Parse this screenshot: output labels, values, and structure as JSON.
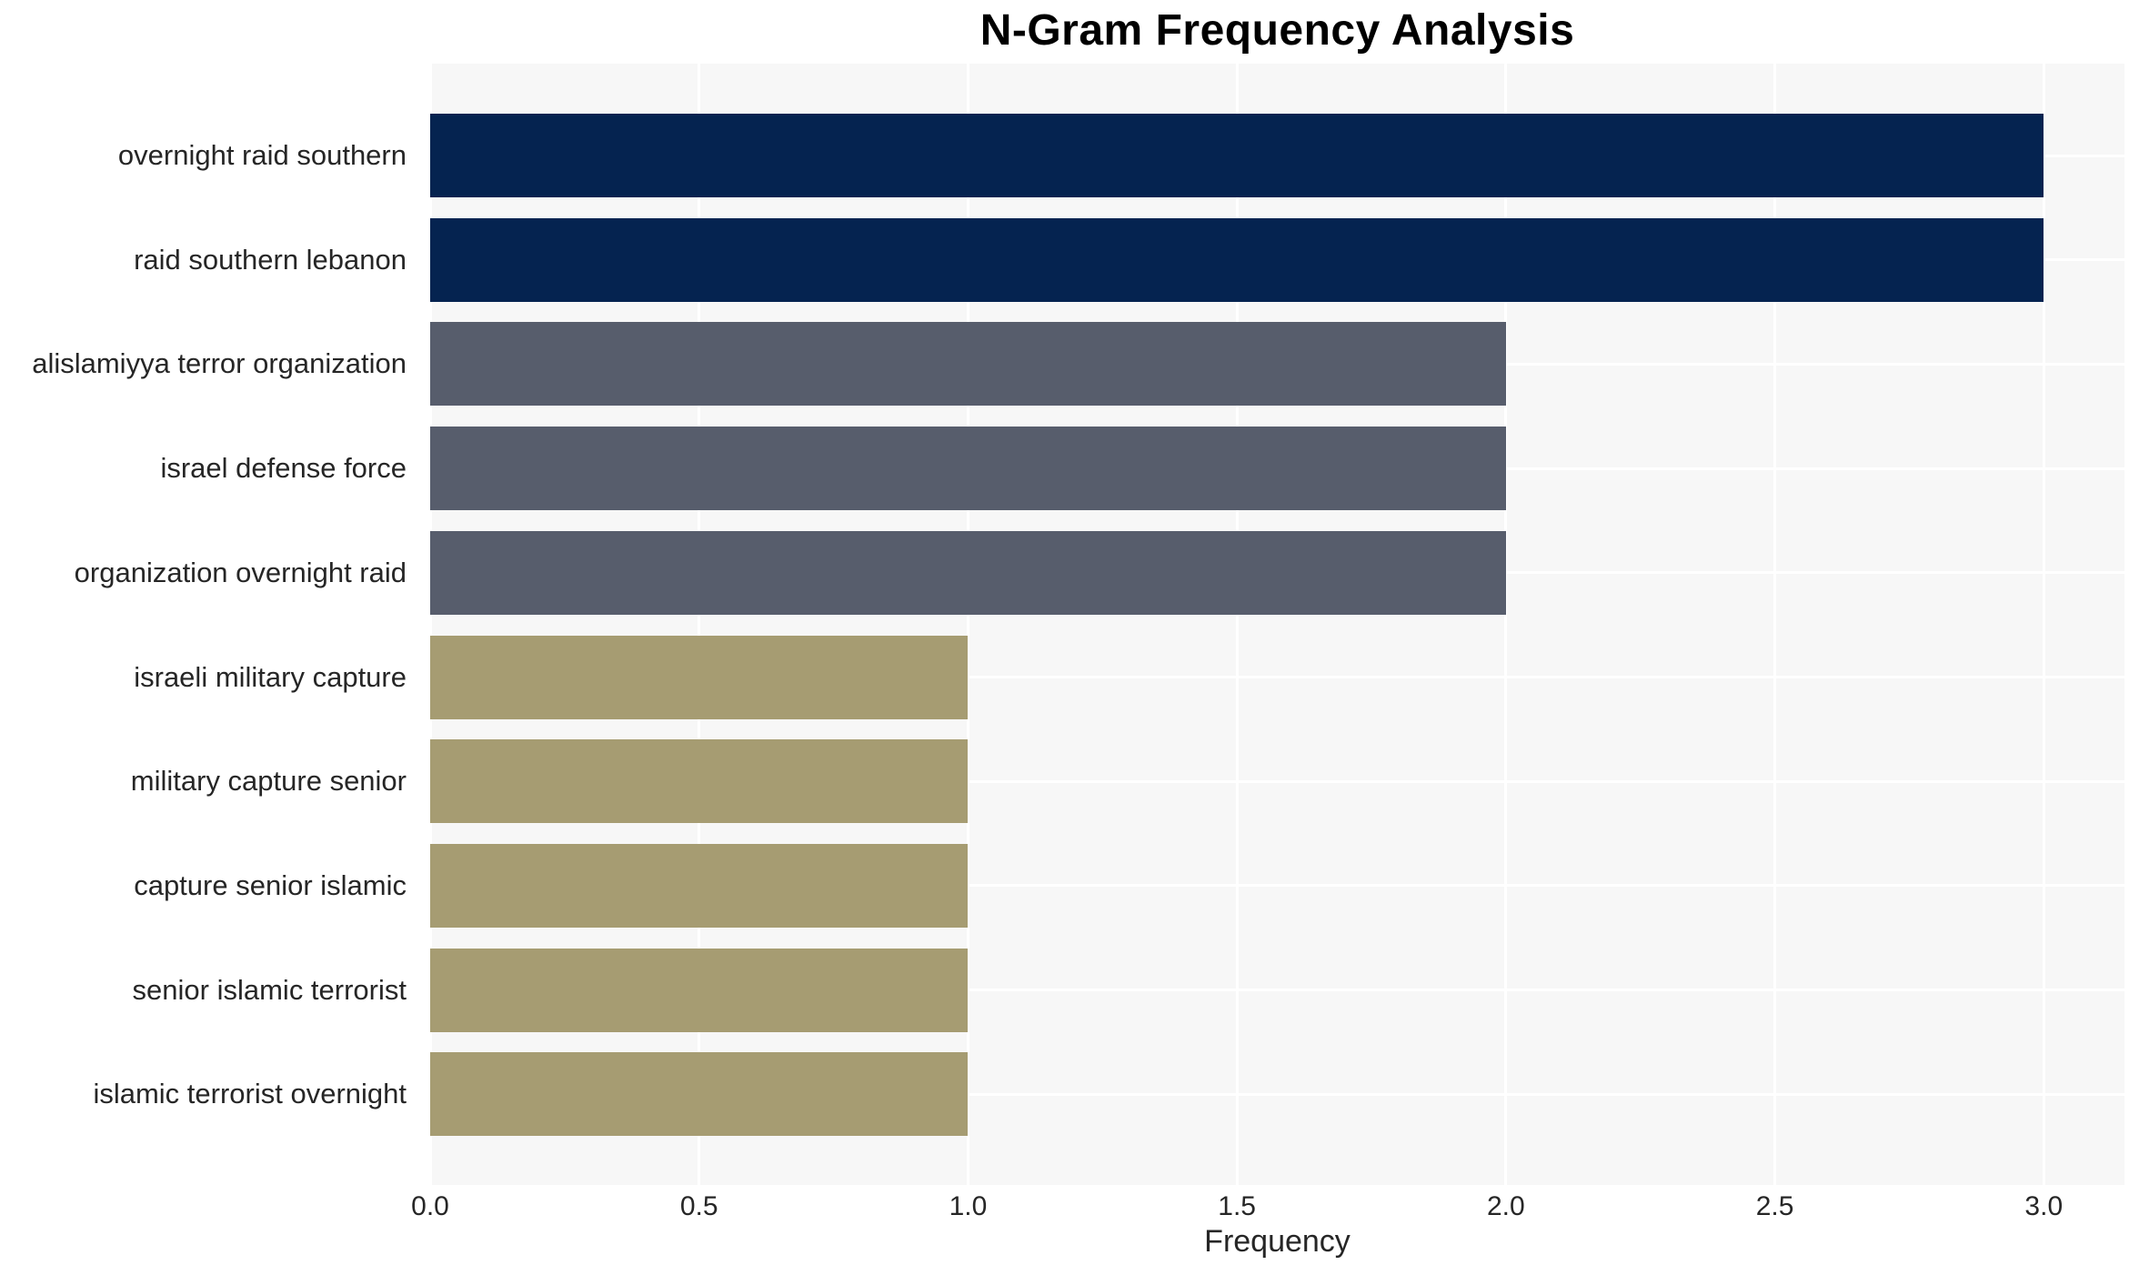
{
  "title": "N-Gram Frequency Analysis",
  "chart_data": {
    "type": "bar",
    "orientation": "horizontal",
    "title": "N-Gram Frequency Analysis",
    "xlabel": "Frequency",
    "categories": [
      "overnight raid southern",
      "raid southern lebanon",
      "alislamiyya terror organization",
      "israel defense force",
      "organization overnight raid",
      "israeli military capture",
      "military capture senior",
      "capture senior islamic",
      "senior islamic terrorist",
      "islamic terrorist overnight"
    ],
    "values": [
      3,
      3,
      2,
      2,
      2,
      1,
      1,
      1,
      1,
      1
    ],
    "bar_colors": [
      "#052350",
      "#052350",
      "#575d6c",
      "#575d6c",
      "#575d6c",
      "#a69c72",
      "#a69c72",
      "#a69c72",
      "#a69c72",
      "#a69c72"
    ],
    "xticks": [
      "0.0",
      "0.5",
      "1.0",
      "1.5",
      "2.0",
      "2.5",
      "3.0"
    ],
    "xtick_values": [
      0,
      0.5,
      1,
      1.5,
      2,
      2.5,
      3
    ],
    "xlim": [
      0,
      3.15
    ],
    "grid": true,
    "legend": false,
    "plot_background": "#f7f7f7",
    "grid_color": "#ffffff",
    "text_color": "#262626",
    "title_color": "#000000"
  }
}
